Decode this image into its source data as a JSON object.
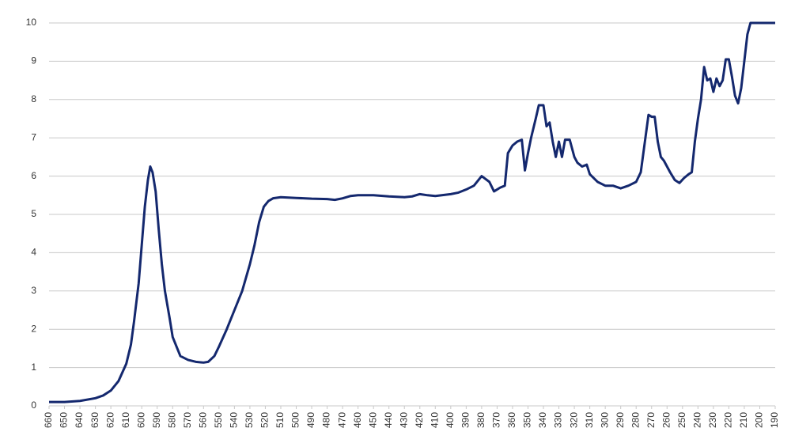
{
  "chart_data": {
    "type": "line",
    "color": "#14286e",
    "grid": true,
    "xlim": [
      660,
      190
    ],
    "xticks": [
      660,
      650,
      640,
      630,
      620,
      610,
      600,
      590,
      580,
      570,
      560,
      550,
      540,
      530,
      520,
      510,
      500,
      490,
      480,
      470,
      460,
      450,
      440,
      430,
      420,
      410,
      400,
      390,
      380,
      370,
      360,
      350,
      340,
      330,
      320,
      310,
      300,
      290,
      280,
      270,
      260,
      250,
      240,
      230,
      220,
      210,
      200,
      190
    ],
    "ylim": [
      0,
      10
    ],
    "yticks": [
      0,
      1,
      2,
      3,
      4,
      5,
      6,
      7,
      8,
      9,
      10
    ],
    "x": [
      660,
      650,
      640,
      630,
      625,
      620,
      615,
      610,
      607,
      605,
      602,
      600,
      598,
      596,
      594.5,
      593,
      591,
      589,
      587,
      585,
      582,
      580,
      577,
      575,
      570,
      565,
      560,
      557,
      553,
      550,
      545,
      540,
      535,
      530,
      527,
      524,
      521,
      518,
      515,
      510,
      500,
      490,
      480,
      475,
      470,
      465,
      460,
      450,
      440,
      430,
      425,
      420,
      415,
      410,
      400,
      395,
      390,
      385,
      380,
      375,
      372,
      368,
      365,
      363,
      360,
      357,
      354,
      352,
      350,
      348,
      345,
      343,
      340,
      338,
      336,
      334,
      332,
      330,
      328,
      326,
      323,
      320,
      318,
      315,
      312,
      310,
      305,
      300,
      295,
      290,
      285,
      280,
      277,
      274,
      272,
      270,
      268,
      266,
      264,
      262,
      258,
      255,
      252,
      249,
      246,
      244,
      242,
      240,
      238,
      236,
      234,
      232,
      230,
      228,
      226,
      224,
      222,
      220,
      218,
      216,
      214,
      212,
      210,
      208,
      206,
      200,
      190
    ],
    "values": [
      0.1,
      0.1,
      0.13,
      0.2,
      0.27,
      0.4,
      0.65,
      1.1,
      1.6,
      2.2,
      3.2,
      4.2,
      5.2,
      5.9,
      6.25,
      6.1,
      5.6,
      4.6,
      3.7,
      3.0,
      2.3,
      1.8,
      1.5,
      1.3,
      1.2,
      1.15,
      1.13,
      1.15,
      1.3,
      1.55,
      2.0,
      2.5,
      3.0,
      3.7,
      4.2,
      4.8,
      5.2,
      5.35,
      5.42,
      5.45,
      5.43,
      5.41,
      5.4,
      5.38,
      5.42,
      5.48,
      5.5,
      5.5,
      5.47,
      5.45,
      5.47,
      5.53,
      5.5,
      5.48,
      5.53,
      5.57,
      5.65,
      5.75,
      6.0,
      5.85,
      5.6,
      5.7,
      5.75,
      6.6,
      6.8,
      6.9,
      6.95,
      6.15,
      6.6,
      7.0,
      7.5,
      7.85,
      7.85,
      7.3,
      7.4,
      6.9,
      6.5,
      6.9,
      6.5,
      6.95,
      6.95,
      6.5,
      6.35,
      6.25,
      6.3,
      6.05,
      5.85,
      5.75,
      5.75,
      5.68,
      5.75,
      5.85,
      6.1,
      7.0,
      7.6,
      7.55,
      7.55,
      6.9,
      6.5,
      6.4,
      6.1,
      5.9,
      5.82,
      5.95,
      6.05,
      6.1,
      6.9,
      7.5,
      8.0,
      8.85,
      8.5,
      8.55,
      8.2,
      8.55,
      8.35,
      8.5,
      9.05,
      9.05,
      8.6,
      8.1,
      7.9,
      8.3,
      9.0,
      9.7,
      10,
      10,
      10
    ]
  }
}
